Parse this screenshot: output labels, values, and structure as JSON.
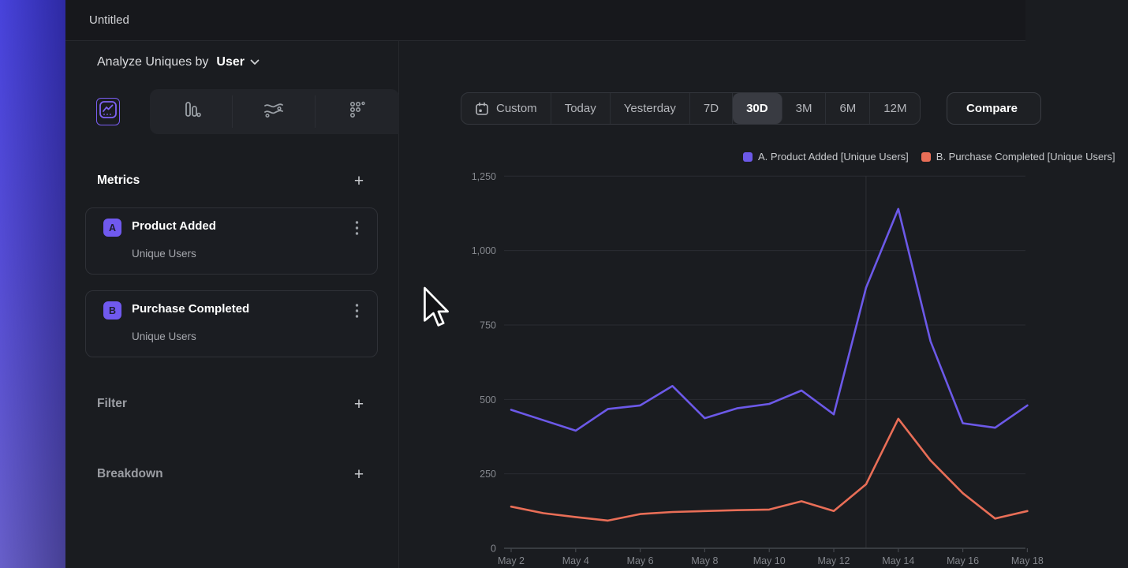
{
  "window": {
    "title": "Untitled"
  },
  "sidebar": {
    "analyze_prefix": "Analyze Uniques by",
    "analyze_value": "User",
    "view_tabs": [
      {
        "icon": "line-chart",
        "selected": true
      },
      {
        "icon": "bar-chart",
        "selected": false
      },
      {
        "icon": "flow",
        "selected": false
      },
      {
        "icon": "grid-dots",
        "selected": false
      }
    ],
    "metrics": {
      "label": "Metrics",
      "add_label": "+",
      "items": [
        {
          "badge": "A",
          "name": "Product Added",
          "measure": "Unique Users"
        },
        {
          "badge": "B",
          "name": "Purchase Completed",
          "measure": "Unique Users"
        }
      ]
    },
    "filter": {
      "label": "Filter",
      "add_label": "+"
    },
    "breakdown": {
      "label": "Breakdown",
      "add_label": "+"
    }
  },
  "toolbar": {
    "ranges": [
      "Custom",
      "Today",
      "Yesterday",
      "7D",
      "30D",
      "3M",
      "6M",
      "12M"
    ],
    "selected_range": "30D",
    "compare_label": "Compare"
  },
  "colors": {
    "series_a": "#6c59e8",
    "series_b": "#e96e57",
    "grid": "#2b2d32",
    "axis": "#43464c",
    "tick_text": "#85888e"
  },
  "chart_data": {
    "type": "line",
    "title": "",
    "x": [
      "May 2",
      "May 3",
      "May 4",
      "May 5",
      "May 6",
      "May 7",
      "May 8",
      "May 9",
      "May 10",
      "May 11",
      "May 12",
      "May 13",
      "May 14",
      "May 15",
      "May 16",
      "May 17",
      "May 18"
    ],
    "x_tick_labels": [
      "May 2",
      "May 4",
      "May 6",
      "May 8",
      "May 10",
      "May 12",
      "May 14",
      "May 16",
      "May 18"
    ],
    "yticks": [
      0,
      250,
      500,
      750,
      1000,
      1250
    ],
    "ytick_labels": [
      "0",
      "250",
      "500",
      "750",
      "1,000",
      "1,250"
    ],
    "ylim": [
      0,
      1250
    ],
    "grid": "horizontal",
    "vertical_gridline_at": "May 13",
    "legend_position": "top-right",
    "series": [
      {
        "name": "A. Product Added [Unique Users]",
        "color": "#6c59e8",
        "values": [
          465,
          430,
          395,
          468,
          480,
          545,
          437,
          470,
          485,
          530,
          450,
          875,
          1140,
          695,
          420,
          405,
          480
        ]
      },
      {
        "name": "B. Purchase Completed [Unique Users]",
        "color": "#e96e57",
        "values": [
          140,
          118,
          105,
          93,
          115,
          122,
          125,
          128,
          130,
          158,
          125,
          215,
          435,
          295,
          185,
          100,
          125
        ]
      }
    ]
  }
}
